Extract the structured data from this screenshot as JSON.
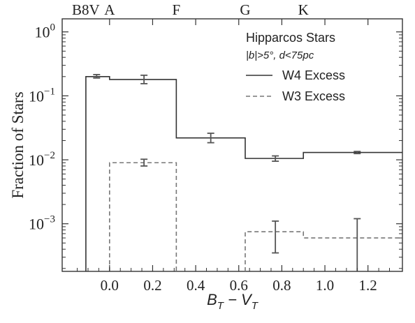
{
  "chart_data": {
    "type": "line",
    "step": true,
    "title": "",
    "ylabel": "Fraction of Stars",
    "xlabel": {
      "main": "B",
      "sub1": "T",
      "mid": " − V",
      "sub2": "T"
    },
    "xlim": [
      -0.22,
      1.36
    ],
    "ylim": [
      0.00018,
      1.6
    ],
    "yscale": "log",
    "x_ticks": [
      0.0,
      0.2,
      0.4,
      0.6,
      0.8,
      1.0,
      1.2
    ],
    "x_tick_labels": [
      "0.0",
      "0.2",
      "0.4",
      "0.6",
      "0.8",
      "1.0",
      "1.2"
    ],
    "y_ticks": [
      0.001,
      0.01,
      0.1,
      1.0
    ],
    "y_tick_labels": [
      {
        "base": "10",
        "exp": "−3"
      },
      {
        "base": "10",
        "exp": "−2"
      },
      {
        "base": "10",
        "exp": "−1"
      },
      {
        "base": "10",
        "exp": "0"
      }
    ],
    "top_axis": [
      {
        "label": "B8V",
        "x": -0.11
      },
      {
        "label": "A",
        "x": 0.0
      },
      {
        "label": "F",
        "x": 0.31
      },
      {
        "label": "G",
        "x": 0.63
      },
      {
        "label": "K",
        "x": 0.9
      }
    ],
    "legend": {
      "position": "top-right",
      "title": "Hipparcos Stars",
      "subtitle": "|b|>5°, d<75pc"
    },
    "series": [
      {
        "name": "W4 Excess",
        "style": "solid",
        "color": "#333333",
        "bins": [
          {
            "x0": -0.11,
            "x1": 0.0,
            "value": 0.2
          },
          {
            "x0": 0.0,
            "x1": 0.31,
            "value": 0.18
          },
          {
            "x0": 0.31,
            "x1": 0.63,
            "value": 0.022
          },
          {
            "x0": 0.63,
            "x1": 0.9,
            "value": 0.0105
          },
          {
            "x0": 0.9,
            "x1": 1.36,
            "value": 0.013
          }
        ],
        "errorbars": [
          {
            "x": -0.06,
            "value": 0.2,
            "lo": 0.19,
            "hi": 0.215
          },
          {
            "x": 0.16,
            "value": 0.18,
            "lo": 0.155,
            "hi": 0.21
          },
          {
            "x": 0.47,
            "value": 0.022,
            "lo": 0.0185,
            "hi": 0.026
          },
          {
            "x": 0.77,
            "value": 0.0105,
            "lo": 0.0095,
            "hi": 0.0115
          },
          {
            "x": 1.15,
            "value": 0.013,
            "lo": 0.0125,
            "hi": 0.0135
          }
        ]
      },
      {
        "name": "W3 Excess",
        "style": "dashed",
        "color": "#777777",
        "bins": [
          {
            "x0": 0.0,
            "x1": 0.31,
            "value": 0.009
          },
          {
            "x0": 0.63,
            "x1": 0.9,
            "value": 0.00075
          },
          {
            "x0": 0.9,
            "x1": 1.36,
            "value": 0.0006
          }
        ],
        "errorbars": [
          {
            "x": 0.16,
            "value": 0.009,
            "lo": 0.008,
            "hi": 0.0102
          },
          {
            "x": 0.77,
            "value": 0.00075,
            "lo": 0.00035,
            "hi": 0.0011
          },
          {
            "x": 1.15,
            "value": 0.0006,
            "lo": 0.00018,
            "hi": 0.0012
          }
        ]
      }
    ]
  }
}
